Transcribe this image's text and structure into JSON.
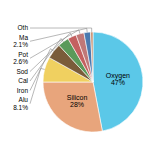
{
  "chart_data": {
    "type": "pie",
    "categories": [
      "Oxygen",
      "Silicon",
      "Alu",
      "Iron",
      "Cal",
      "Sod",
      "Pot",
      "Ma",
      "Oth"
    ],
    "values": [
      47,
      28,
      8.1,
      5.0,
      3.6,
      2.8,
      2.6,
      2.1,
      0.8
    ],
    "value_labels": [
      "47%",
      "28%",
      "8.1%",
      null,
      null,
      null,
      "2.6%",
      "2.1%",
      null
    ],
    "data_labels": true,
    "colors": [
      "#5bc8e8",
      "#e8a57c",
      "#f0d060",
      "#7a5c3a",
      "#5a9a5a",
      "#c46060",
      "#c07878",
      "#4a7ab0",
      "#c89070"
    ]
  }
}
